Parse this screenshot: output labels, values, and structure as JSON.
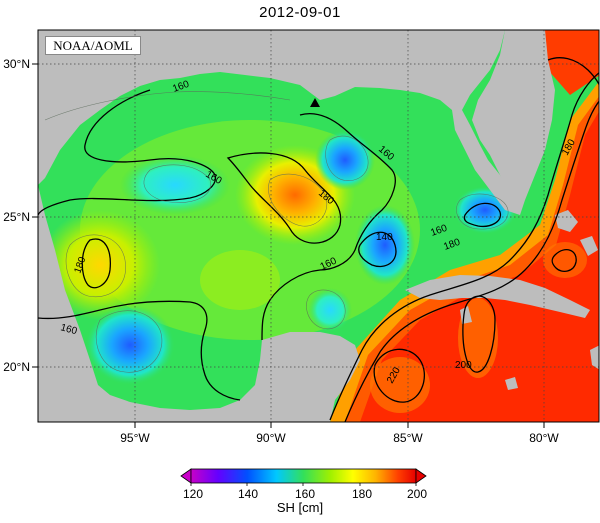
{
  "title": "2012-09-01",
  "credit": "NOAA/AOML",
  "axes": {
    "x_ticks": [
      "95°W",
      "90°W",
      "85°W",
      "80°W"
    ],
    "y_ticks": [
      "30°N",
      "25°N",
      "20°N"
    ]
  },
  "contour_labels": [
    "160",
    "160",
    "160",
    "180",
    "160",
    "180",
    "140",
    "160",
    "180",
    "180",
    "160",
    "200",
    "220"
  ],
  "colorbar": {
    "ticks": [
      "120",
      "140",
      "160",
      "180",
      "200"
    ],
    "unit": "SH [cm]",
    "colors": [
      "#c800c8",
      "#6400ff",
      "#0050ff",
      "#00c8ff",
      "#00ffaa",
      "#3cf03c",
      "#a0f000",
      "#ffff00",
      "#ffb400",
      "#ff6400",
      "#ff1e00",
      "#e60000"
    ]
  },
  "colors": {
    "land": "#bdbdbd",
    "ocean_base": "#33e05a",
    "warm_core": "#ff2a00"
  }
}
